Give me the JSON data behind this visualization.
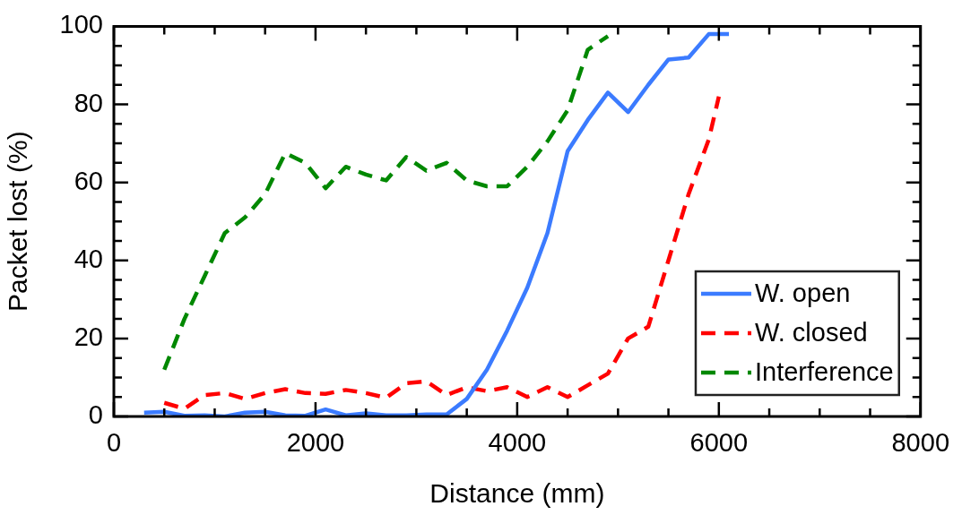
{
  "chart_data": {
    "type": "line",
    "xlabel": "Distance (mm)",
    "ylabel": "Packet lost (%)",
    "xlim": [
      0,
      8000
    ],
    "xticks": [
      0,
      {
        "value": 500,
        "label": null
      },
      {
        "value": 1000,
        "label": null
      },
      {
        "value": 1500,
        "label": null
      },
      2000,
      {
        "value": 2500,
        "label": null
      },
      {
        "value": 3000,
        "label": null
      },
      {
        "value": 3500,
        "label": null
      },
      4000,
      {
        "value": 4500,
        "label": null
      },
      {
        "value": 5000,
        "label": null
      },
      {
        "value": 5500,
        "label": null
      },
      6000,
      {
        "value": 6500,
        "label": null
      },
      {
        "value": 7000,
        "label": null
      },
      {
        "value": 7500,
        "label": null
      },
      8000
    ],
    "ylim": [
      0,
      100
    ],
    "yticks": [
      0,
      {
        "value": 5,
        "label": null
      },
      {
        "value": 10,
        "label": null
      },
      {
        "value": 15,
        "label": null
      },
      20,
      {
        "value": 25,
        "label": null
      },
      {
        "value": 30,
        "label": null
      },
      {
        "value": 35,
        "label": null
      },
      40,
      {
        "value": 45,
        "label": null
      },
      {
        "value": 50,
        "label": null
      },
      {
        "value": 55,
        "label": null
      },
      60,
      {
        "value": 65,
        "label": null
      },
      {
        "value": 70,
        "label": null
      },
      {
        "value": 75,
        "label": null
      },
      80,
      {
        "value": 85,
        "label": null
      },
      {
        "value": 90,
        "label": null
      },
      {
        "value": 95,
        "label": null
      },
      100
    ],
    "legend": "bottom right",
    "marker": "none",
    "series": [
      {
        "name": "W. open",
        "color": "#3b7bff",
        "line_style": "solid",
        "x": [
          300,
          500,
          700,
          900,
          1100,
          1300,
          1500,
          1700,
          1900,
          2100,
          2300,
          2500,
          2700,
          2900,
          3100,
          3300,
          3500,
          3700,
          3900,
          4100,
          4300,
          4500,
          4700,
          4900,
          5100,
          5300,
          5500,
          5700,
          5900,
          6100
        ],
        "values": [
          1,
          1.2,
          0.2,
          0.3,
          0,
          1,
          1.2,
          0.3,
          0.2,
          1.8,
          0.3,
          0.8,
          0.3,
          0.3,
          0.5,
          0.5,
          4.5,
          12,
          22,
          33,
          47,
          68,
          76,
          83,
          78,
          85,
          91.5,
          92,
          98,
          98
        ]
      },
      {
        "name": "W. closed",
        "color": "#ff0000",
        "line_style": "dashed",
        "x": [
          500,
          700,
          900,
          1100,
          1300,
          1500,
          1700,
          1900,
          2100,
          2300,
          2500,
          2700,
          2900,
          3100,
          3300,
          3500,
          3700,
          3900,
          4100,
          4300,
          4500,
          4700,
          4900,
          5100,
          5300,
          5500,
          5700,
          5900,
          6000
        ],
        "values": [
          3.5,
          2,
          5.5,
          6,
          4.5,
          6,
          7,
          6,
          5.8,
          6.8,
          6,
          4.8,
          8.5,
          9,
          5.5,
          7.5,
          6.5,
          7.5,
          5,
          7.5,
          5,
          8,
          11,
          20,
          23,
          40,
          57,
          71,
          82
        ]
      },
      {
        "name": "Interference",
        "color": "#008800",
        "line_style": "dashed",
        "x": [
          500,
          700,
          900,
          1100,
          1300,
          1500,
          1700,
          1900,
          2100,
          2300,
          2500,
          2700,
          2900,
          3100,
          3300,
          3500,
          3700,
          3900,
          4100,
          4300,
          4500,
          4700,
          4900
        ],
        "values": [
          12,
          25,
          36,
          47,
          51,
          57,
          67.5,
          65,
          58.5,
          64,
          62,
          60.5,
          66.5,
          63,
          65,
          60.5,
          59,
          59,
          64,
          70.5,
          78.5,
          94,
          97.5
        ]
      }
    ]
  }
}
